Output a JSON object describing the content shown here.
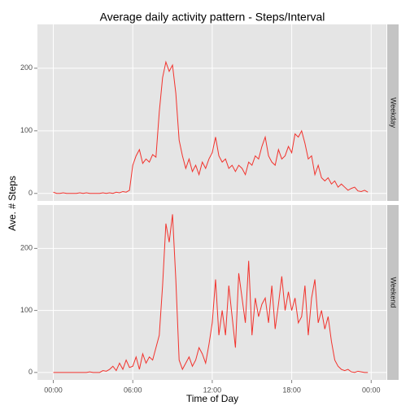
{
  "chart_data": {
    "type": "line",
    "facet": true,
    "title": "Average daily activity pattern - Steps/Interval",
    "x_label": "Time of Day",
    "y_label": "Ave. # Steps",
    "x": [
      0,
      0.25,
      0.5,
      0.75,
      1,
      1.25,
      1.5,
      1.75,
      2,
      2.25,
      2.5,
      2.75,
      3,
      3.25,
      3.5,
      3.75,
      4,
      4.25,
      4.5,
      4.75,
      5,
      5.25,
      5.5,
      5.75,
      6,
      6.25,
      6.5,
      6.75,
      7,
      7.25,
      7.5,
      7.75,
      8,
      8.25,
      8.5,
      8.75,
      9,
      9.25,
      9.5,
      9.75,
      10,
      10.25,
      10.5,
      10.75,
      11,
      11.25,
      11.5,
      11.75,
      12,
      12.25,
      12.5,
      12.75,
      13,
      13.25,
      13.5,
      13.75,
      14,
      14.25,
      14.5,
      14.75,
      15,
      15.25,
      15.5,
      15.75,
      16,
      16.25,
      16.5,
      16.75,
      17,
      17.25,
      17.5,
      17.75,
      18,
      18.25,
      18.5,
      18.75,
      19,
      19.25,
      19.5,
      19.75,
      20,
      20.25,
      20.5,
      20.75,
      21,
      21.25,
      21.5,
      21.75,
      22,
      22.25,
      22.5,
      22.75,
      23,
      23.25,
      23.5,
      23.75
    ],
    "xlim": [
      -1.2,
      25.15
    ],
    "xticks": [
      {
        "value": 0,
        "label": "00:00"
      },
      {
        "value": 6,
        "label": "06:00"
      },
      {
        "value": 12,
        "label": "12:00"
      },
      {
        "value": 18,
        "label": "18:00"
      },
      {
        "value": 24,
        "label": "00:00"
      }
    ],
    "ylim": [
      -12,
      270
    ],
    "yticks": [
      0,
      100,
      200
    ],
    "grid": true,
    "series": [
      {
        "name": "Weekday",
        "color": "#f2322c",
        "values": [
          2,
          0,
          0,
          1,
          0,
          0,
          0,
          0,
          1,
          0,
          1,
          0,
          0,
          0,
          0,
          1,
          0,
          1,
          0,
          2,
          1,
          3,
          2,
          5,
          45,
          60,
          70,
          48,
          55,
          50,
          62,
          58,
          130,
          185,
          210,
          195,
          205,
          160,
          85,
          60,
          40,
          55,
          35,
          45,
          30,
          50,
          40,
          55,
          65,
          90,
          60,
          50,
          55,
          40,
          45,
          35,
          45,
          40,
          30,
          50,
          45,
          60,
          55,
          75,
          90,
          60,
          50,
          45,
          70,
          55,
          60,
          75,
          65,
          95,
          90,
          100,
          80,
          55,
          60,
          30,
          45,
          25,
          20,
          25,
          15,
          20,
          10,
          15,
          10,
          5,
          8,
          10,
          4,
          3,
          5,
          2
        ]
      },
      {
        "name": "Weekend",
        "color": "#f2322c",
        "values": [
          0,
          0,
          0,
          0,
          0,
          0,
          0,
          0,
          0,
          0,
          0,
          1,
          0,
          0,
          0,
          3,
          2,
          5,
          10,
          3,
          15,
          5,
          20,
          8,
          10,
          25,
          5,
          30,
          15,
          25,
          20,
          40,
          60,
          140,
          240,
          210,
          255,
          150,
          20,
          5,
          15,
          25,
          10,
          20,
          40,
          30,
          15,
          45,
          80,
          150,
          60,
          100,
          60,
          140,
          90,
          40,
          160,
          120,
          80,
          180,
          60,
          120,
          90,
          110,
          120,
          80,
          140,
          70,
          110,
          155,
          100,
          130,
          100,
          120,
          80,
          90,
          140,
          60,
          120,
          150,
          80,
          100,
          70,
          90,
          50,
          20,
          10,
          5,
          3,
          5,
          1,
          0,
          2,
          1,
          0,
          0
        ]
      }
    ]
  }
}
